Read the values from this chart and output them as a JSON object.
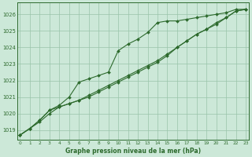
{
  "x": [
    0,
    1,
    2,
    3,
    4,
    5,
    6,
    7,
    8,
    9,
    10,
    11,
    12,
    13,
    14,
    15,
    16,
    17,
    18,
    19,
    20,
    21,
    22,
    23
  ],
  "line1": [
    1018.7,
    1019.1,
    1019.5,
    1020.0,
    1020.4,
    1020.6,
    1020.8,
    1021.0,
    1021.3,
    1021.6,
    1021.9,
    1022.2,
    1022.5,
    1022.8,
    1023.1,
    1023.5,
    1024.0,
    1024.4,
    1024.8,
    1025.1,
    1025.5,
    1025.8,
    1026.2,
    1026.3
  ],
  "line2": [
    1018.7,
    1019.1,
    1019.6,
    1020.2,
    1020.5,
    1021.0,
    1021.9,
    1022.1,
    1022.3,
    1022.5,
    1023.8,
    1024.2,
    1024.5,
    1024.9,
    1025.5,
    1025.6,
    1025.6,
    1025.7,
    1025.8,
    1025.9,
    1026.0,
    1026.1,
    1026.3,
    1026.3
  ],
  "line3": [
    1018.7,
    1019.1,
    1019.6,
    1020.2,
    1020.4,
    1020.6,
    1020.8,
    1021.1,
    1021.4,
    1021.7,
    1022.0,
    1022.3,
    1022.6,
    1022.9,
    1023.2,
    1023.6,
    1024.0,
    1024.4,
    1024.8,
    1025.1,
    1025.4,
    1025.8,
    1026.2,
    1026.3
  ],
  "line_color": "#2d6a2d",
  "bg_color": "#cce8d8",
  "grid_color": "#99c4aa",
  "title": "Graphe pression niveau de la mer (hPa)",
  "ylabel_vals": [
    1019,
    1020,
    1021,
    1022,
    1023,
    1024,
    1025,
    1026
  ],
  "xlabel_vals": [
    0,
    1,
    2,
    3,
    4,
    5,
    6,
    7,
    8,
    9,
    10,
    11,
    12,
    13,
    14,
    15,
    16,
    17,
    18,
    19,
    20,
    21,
    22,
    23
  ],
  "ylim": [
    1018.4,
    1026.7
  ],
  "xlim": [
    -0.3,
    23.3
  ]
}
